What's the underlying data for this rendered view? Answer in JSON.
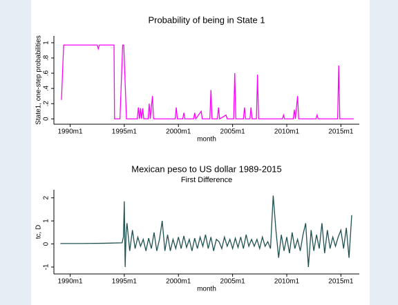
{
  "chart_data": [
    {
      "type": "line",
      "title": "Probability of being in State 1",
      "xlabel": "month",
      "ylabel": "State1, one-step probabilities",
      "color": "#ff00ff",
      "x": [
        1989.2,
        1989.4,
        1992.5,
        1992.6,
        1992.7,
        1994.05,
        1994.1,
        1994.6,
        1994.85,
        1994.95,
        1995.2,
        1996.2,
        1996.3,
        1996.4,
        1996.5,
        1996.6,
        1996.7,
        1996.8,
        1997.2,
        1997.3,
        1997.4,
        1997.6,
        1997.7,
        1999.7,
        1999.8,
        1999.9,
        2000.4,
        2000.5,
        2000.6,
        2001.4,
        2001.5,
        2001.6,
        2002.1,
        2002.2,
        2002.9,
        2003.0,
        2003.1,
        2003.6,
        2003.7,
        2003.8,
        2004.4,
        2004.5,
        2005.1,
        2005.2,
        2005.3,
        2006.0,
        2006.1,
        2006.2,
        2006.6,
        2006.7,
        2006.8,
        2007.2,
        2007.3,
        2007.4,
        2009.6,
        2009.7,
        2009.8,
        2010.6,
        2010.7,
        2010.8,
        2011.0,
        2011.1,
        2012.7,
        2012.8,
        2012.9,
        2014.7,
        2014.8,
        2014.9,
        2016.2
      ],
      "values": [
        0.25,
        0.97,
        0.97,
        0.92,
        0.97,
        0.97,
        0,
        0,
        0.97,
        0.97,
        0,
        0,
        0.15,
        0,
        0.14,
        0,
        0.14,
        0,
        0,
        0.2,
        0,
        0.3,
        0,
        0,
        0.15,
        0,
        0,
        0.08,
        0,
        0,
        0.08,
        0,
        0.1,
        0,
        0,
        0.38,
        0,
        0,
        0.15,
        0,
        0.05,
        0,
        0,
        0.6,
        0,
        0,
        0.15,
        0,
        0,
        0.15,
        0,
        0,
        0.58,
        0,
        0,
        0.05,
        0,
        0,
        0.12,
        0,
        0.3,
        0,
        0,
        0.05,
        0,
        0,
        0.7,
        0,
        0
      ],
      "xlim": [
        1988.5,
        2016.7
      ],
      "ylim": [
        -0.07,
        1.09
      ],
      "xticks": [
        {
          "value": 1990,
          "label": "1990m1"
        },
        {
          "value": 1995,
          "label": "1995m1"
        },
        {
          "value": 2000,
          "label": "2000m1"
        },
        {
          "value": 2005,
          "label": "2005m1"
        },
        {
          "value": 2010,
          "label": "2010m1"
        },
        {
          "value": 2015,
          "label": "2015m1"
        }
      ],
      "yticks": [
        0,
        {
          "value": 0.2,
          "label": ".2"
        },
        {
          "value": 0.4,
          "label": ".4"
        },
        {
          "value": 0.6,
          "label": ".6"
        },
        {
          "value": 0.8,
          "label": ".8"
        },
        1
      ]
    },
    {
      "type": "line",
      "title": "Mexican peso to US dollar 1989-2015",
      "subtitle": "First Difference",
      "xlabel": "month",
      "ylabel": "tc, D",
      "color": "#1f5050",
      "x": [
        1989.1,
        1991,
        1993,
        1994.8,
        1994.92,
        1995.0,
        1995.08,
        1995.17,
        1995.25,
        1995.5,
        1995.75,
        1996,
        1996.25,
        1996.5,
        1996.75,
        1997,
        1997.25,
        1997.5,
        1997.75,
        1998,
        1998.25,
        1998.5,
        1998.75,
        1999,
        1999.25,
        1999.5,
        1999.75,
        2000,
        2000.25,
        2000.5,
        2000.75,
        2001,
        2001.25,
        2001.5,
        2001.75,
        2002,
        2002.25,
        2002.5,
        2002.75,
        2003,
        2003.25,
        2003.5,
        2003.75,
        2004,
        2004.25,
        2004.5,
        2004.75,
        2005,
        2005.25,
        2005.5,
        2005.75,
        2006,
        2006.25,
        2006.5,
        2006.75,
        2007,
        2007.25,
        2007.5,
        2007.75,
        2008,
        2008.25,
        2008.5,
        2008.75,
        2009,
        2009.25,
        2009.5,
        2009.75,
        2010,
        2010.25,
        2010.5,
        2010.75,
        2011,
        2011.25,
        2011.5,
        2011.75,
        2012,
        2012.25,
        2012.5,
        2012.75,
        2013,
        2013.25,
        2013.5,
        2013.75,
        2014,
        2014.25,
        2014.5,
        2014.75,
        2015,
        2015.25,
        2015.5,
        2015.75,
        2016
      ],
      "values": [
        0.02,
        0.02,
        0.03,
        0.05,
        0.3,
        1.85,
        -1.0,
        0.5,
        0.9,
        -0.3,
        0.6,
        -0.2,
        0.3,
        -0.1,
        0.2,
        -0.3,
        0.25,
        -0.2,
        0.5,
        -0.3,
        0.2,
        1.0,
        -0.3,
        0.4,
        -0.3,
        0.2,
        -0.2,
        0.3,
        -0.2,
        0.35,
        -0.15,
        0.2,
        -0.3,
        0.25,
        -0.2,
        0.3,
        -0.1,
        0.4,
        -0.2,
        0.3,
        -0.3,
        0.2,
        0.1,
        -0.2,
        0.3,
        -0.1,
        0.2,
        -0.2,
        0.25,
        -0.15,
        0.3,
        -0.2,
        0.4,
        -0.1,
        0.2,
        -0.1,
        0.2,
        -0.2,
        0.3,
        -0.1,
        0.1,
        -0.2,
        2.1,
        0.6,
        -0.6,
        0.4,
        -0.3,
        0.3,
        -0.4,
        0.5,
        -0.2,
        0.2,
        -0.3,
        0.4,
        0.9,
        -1.0,
        0.6,
        -0.3,
        0.4,
        -0.2,
        0.9,
        -0.4,
        0.6,
        -0.2,
        0.3,
        -0.1,
        0.3,
        0.6,
        -0.2,
        0.7,
        -0.6,
        1.25
      ],
      "xlim": [
        1988.5,
        2016.7
      ],
      "ylim": [
        -1.3,
        2.35
      ],
      "xticks": [
        {
          "value": 1990,
          "label": "1990m1"
        },
        {
          "value": 1995,
          "label": "1995m1"
        },
        {
          "value": 2000,
          "label": "2000m1"
        },
        {
          "value": 2005,
          "label": "2005m1"
        },
        {
          "value": 2010,
          "label": "2010m1"
        },
        {
          "value": 2015,
          "label": "2015m1"
        }
      ],
      "yticks": [
        -1,
        0,
        1,
        2
      ]
    }
  ]
}
